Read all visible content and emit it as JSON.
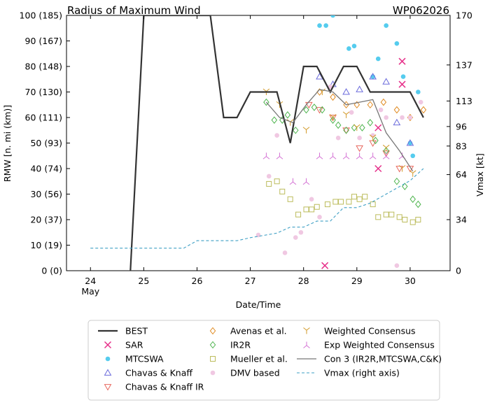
{
  "chart_data": {
    "type": "scatter",
    "title": "Radius of Maximum Wind",
    "storm_id": "WP062026",
    "xlabel": "Date/Time",
    "ylabel_left": "RMW [n. mi (km)]",
    "ylabel_right": "Vmax [kt]",
    "x_ticks": [
      {
        "day": 24,
        "label": "24",
        "sublabel": "May"
      },
      {
        "day": 25,
        "label": "25",
        "sublabel": ""
      },
      {
        "day": 26,
        "label": "26",
        "sublabel": ""
      },
      {
        "day": 27,
        "label": "27",
        "sublabel": ""
      },
      {
        "day": 28,
        "label": "28",
        "sublabel": ""
      },
      {
        "day": 29,
        "label": "29",
        "sublabel": ""
      },
      {
        "day": 30,
        "label": "30",
        "sublabel": ""
      }
    ],
    "xlim": [
      23.55,
      30.75
    ],
    "ylim": [
      0,
      100
    ],
    "y_ticks": [
      {
        "v": 0,
        "label": "0 (0)"
      },
      {
        "v": 10,
        "label": "10 (19)"
      },
      {
        "v": 20,
        "label": "20 (37)"
      },
      {
        "v": 30,
        "label": "30 (56)"
      },
      {
        "v": 40,
        "label": "40 (74)"
      },
      {
        "v": 50,
        "label": "50 (93)"
      },
      {
        "v": 60,
        "label": "60 (111)"
      },
      {
        "v": 70,
        "label": "70 (130)"
      },
      {
        "v": 80,
        "label": "80 (148)"
      },
      {
        "v": 90,
        "label": "90 (167)"
      },
      {
        "v": 100,
        "label": "100 (185)"
      }
    ],
    "y_right_ticks": [
      {
        "v": 0,
        "label": "0"
      },
      {
        "v": 34,
        "label": "34"
      },
      {
        "v": 64,
        "label": "64"
      },
      {
        "v": 83,
        "label": "83"
      },
      {
        "v": 96,
        "label": "96"
      },
      {
        "v": 113,
        "label": "113"
      },
      {
        "v": 137,
        "label": "137"
      },
      {
        "v": 170,
        "label": "170"
      }
    ],
    "y_right_lim": [
      0,
      170
    ],
    "grid": false,
    "legend_position": "bottom",
    "series": [
      {
        "name": "BEST",
        "kind": "line",
        "color": "#333333",
        "width": 2.2,
        "x": [
          24.75,
          25.0,
          26.25,
          26.5,
          26.75,
          27.0,
          27.25,
          27.5,
          27.75,
          28.0,
          28.25,
          28.5,
          28.75,
          29.0,
          29.25,
          29.5,
          29.75,
          30.0,
          30.25
        ],
        "y": [
          0,
          100,
          100,
          60,
          60,
          70,
          70,
          70,
          50,
          80,
          80,
          70,
          80,
          80,
          70,
          70,
          70,
          70,
          60
        ]
      },
      {
        "name": "SAR",
        "kind": "marker",
        "marker": "x",
        "color": "#e6308a",
        "x": [
          28.4,
          29.4,
          29.4,
          29.85,
          29.85
        ],
        "y": [
          2,
          56,
          40,
          73,
          82
        ]
      },
      {
        "name": "MTCSWA",
        "kind": "marker",
        "marker": "dot",
        "color": "#55ccee",
        "x": [
          28.3,
          28.42,
          28.55,
          28.85,
          28.95,
          29.3,
          29.4,
          29.55,
          29.75,
          29.87,
          30.0,
          30.05,
          30.15
        ],
        "y": [
          96,
          96,
          100,
          87,
          88,
          76,
          83,
          96,
          89,
          76,
          50,
          45,
          70
        ]
      },
      {
        "name": "Chavas & Knaff",
        "kind": "marker",
        "marker": "tri-up",
        "color": "#6b6bdc",
        "x": [
          28.3,
          28.55,
          28.8,
          29.05,
          29.3,
          29.55,
          29.75,
          30.0
        ],
        "y": [
          76,
          73,
          70,
          71,
          76,
          74,
          58,
          50
        ]
      },
      {
        "name": "Chavas & Knaff IR",
        "kind": "marker",
        "marker": "tri-down",
        "color": "#e8685e",
        "x": [
          28.1,
          28.3,
          28.55,
          28.8,
          29.05,
          29.3,
          29.55,
          29.8,
          30.0
        ],
        "y": [
          65,
          63,
          60,
          55,
          48,
          50,
          46,
          40,
          40
        ]
      },
      {
        "name": "Avenas et al.",
        "kind": "marker",
        "marker": "diamond",
        "color": "#e08a20",
        "x": [
          28.3,
          28.55,
          28.8,
          29.0,
          29.25,
          29.5,
          29.75,
          30.0,
          30.25
        ],
        "y": [
          70,
          68,
          65,
          65,
          65,
          66,
          63,
          60,
          63
        ]
      },
      {
        "name": "IR2R",
        "kind": "marker",
        "marker": "diamond",
        "color": "#4eb44e",
        "x": [
          27.3,
          27.45,
          27.6,
          27.7,
          27.85,
          28.05,
          28.2,
          28.35,
          28.55,
          28.65,
          28.8,
          28.95,
          29.1,
          29.25,
          29.35,
          29.55,
          29.75,
          29.9,
          30.05,
          30.15
        ],
        "y": [
          66,
          59,
          59,
          61,
          55,
          63,
          64,
          63,
          59,
          57,
          55,
          56,
          56,
          58,
          51,
          47,
          35,
          33,
          28,
          26
        ]
      },
      {
        "name": "Mueller et al.",
        "kind": "marker",
        "marker": "square",
        "color": "#bcbc5c",
        "x": [
          27.35,
          27.5,
          27.6,
          27.75,
          27.9,
          28.05,
          28.15,
          28.25,
          28.45,
          28.6,
          28.7,
          28.85,
          28.95,
          29.05,
          29.15,
          29.3,
          29.4,
          29.55,
          29.65,
          29.8,
          29.9,
          30.05,
          30.15
        ],
        "y": [
          34,
          35,
          31,
          28,
          22,
          24,
          24,
          25,
          26,
          27,
          27,
          27,
          29,
          28,
          29,
          26,
          21,
          22,
          22,
          21,
          20,
          19,
          20
        ]
      },
      {
        "name": "DMV based",
        "kind": "marker",
        "marker": "dot",
        "color": "#f0c8e2",
        "x": [
          27.15,
          27.35,
          27.5,
          27.65,
          27.85,
          27.95,
          28.15,
          28.3,
          28.5,
          28.65,
          28.9,
          29.05,
          29.3,
          29.45,
          29.55,
          29.75,
          29.85,
          30.0,
          30.2
        ],
        "y": [
          14,
          37,
          53,
          7,
          13,
          15,
          28,
          21,
          72,
          52,
          62,
          52,
          53,
          63,
          60,
          2,
          60,
          60,
          66
        ]
      },
      {
        "name": "Weighted Consensus",
        "kind": "marker",
        "marker": "y-up",
        "color": "#d29a2a",
        "x": [
          27.3,
          27.55,
          27.75,
          28.05,
          28.35,
          28.55,
          28.8,
          29.0,
          29.3,
          29.55,
          29.85,
          30.05
        ],
        "y": [
          70,
          65,
          58,
          55,
          70,
          60,
          61,
          56,
          52,
          48,
          40,
          38
        ]
      },
      {
        "name": "Exp Weighted Consensus",
        "kind": "marker",
        "marker": "y-down",
        "color": "#d472d4",
        "x": [
          27.3,
          27.55,
          27.8,
          28.05,
          28.3,
          28.55,
          28.8,
          29.05,
          29.3,
          29.55,
          29.85
        ],
        "y": [
          45,
          45,
          35,
          35,
          45,
          45,
          45,
          45,
          45,
          45,
          45
        ]
      },
      {
        "name": "Con 3 (IR2R,MTCSWA,C&K)",
        "kind": "line",
        "color": "#777777",
        "width": 1.3,
        "x": [
          27.3,
          27.55,
          27.8,
          28.05,
          28.3,
          28.55,
          28.8,
          29.05,
          29.3,
          29.55,
          29.8,
          30.05
        ],
        "y": [
          66,
          60,
          58,
          65,
          71,
          70,
          65,
          66,
          67,
          54,
          47,
          39
        ]
      },
      {
        "name": "Vmax (right axis)",
        "kind": "line",
        "axis": "right",
        "dash": true,
        "color": "#3d9fc4",
        "width": 1.1,
        "x": [
          24.0,
          25.75,
          26.0,
          26.75,
          27.0,
          27.5,
          27.75,
          28.0,
          28.25,
          28.5,
          28.75,
          29.0,
          29.25,
          29.5,
          29.75,
          30.0,
          30.25
        ],
        "y": [
          15,
          15,
          20,
          20,
          22,
          25,
          29,
          29,
          33,
          33,
          42,
          42,
          45,
          50,
          55,
          60,
          68
        ]
      }
    ]
  }
}
